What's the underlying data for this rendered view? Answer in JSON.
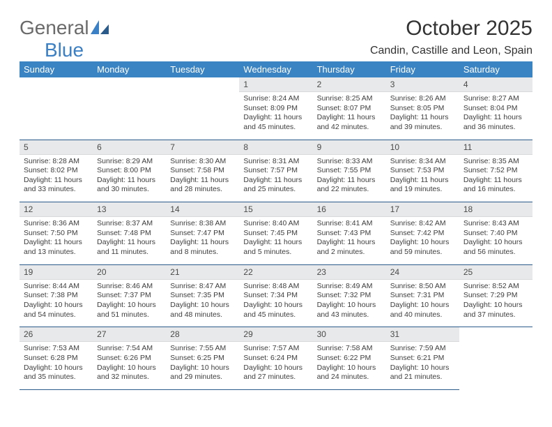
{
  "logo": {
    "general": "General",
    "blue": "Blue"
  },
  "title": "October 2025",
  "location": "Candin, Castille and Leon, Spain",
  "colors": {
    "header_bg": "#3b84c4",
    "header_text": "#ffffff",
    "daynum_bg": "#e8e9ea",
    "border": "#2a5a8a",
    "text": "#3d3d3d",
    "logo_general": "#6a6a6a",
    "logo_blue": "#3b7fc4"
  },
  "weekdays": [
    "Sunday",
    "Monday",
    "Tuesday",
    "Wednesday",
    "Thursday",
    "Friday",
    "Saturday"
  ],
  "weeks": [
    [
      {
        "day": "",
        "lines": [
          "",
          "",
          "",
          ""
        ]
      },
      {
        "day": "",
        "lines": [
          "",
          "",
          "",
          ""
        ]
      },
      {
        "day": "",
        "lines": [
          "",
          "",
          "",
          ""
        ]
      },
      {
        "day": "1",
        "lines": [
          "Sunrise: 8:24 AM",
          "Sunset: 8:09 PM",
          "Daylight: 11 hours",
          "and 45 minutes."
        ]
      },
      {
        "day": "2",
        "lines": [
          "Sunrise: 8:25 AM",
          "Sunset: 8:07 PM",
          "Daylight: 11 hours",
          "and 42 minutes."
        ]
      },
      {
        "day": "3",
        "lines": [
          "Sunrise: 8:26 AM",
          "Sunset: 8:05 PM",
          "Daylight: 11 hours",
          "and 39 minutes."
        ]
      },
      {
        "day": "4",
        "lines": [
          "Sunrise: 8:27 AM",
          "Sunset: 8:04 PM",
          "Daylight: 11 hours",
          "and 36 minutes."
        ]
      }
    ],
    [
      {
        "day": "5",
        "lines": [
          "Sunrise: 8:28 AM",
          "Sunset: 8:02 PM",
          "Daylight: 11 hours",
          "and 33 minutes."
        ]
      },
      {
        "day": "6",
        "lines": [
          "Sunrise: 8:29 AM",
          "Sunset: 8:00 PM",
          "Daylight: 11 hours",
          "and 30 minutes."
        ]
      },
      {
        "day": "7",
        "lines": [
          "Sunrise: 8:30 AM",
          "Sunset: 7:58 PM",
          "Daylight: 11 hours",
          "and 28 minutes."
        ]
      },
      {
        "day": "8",
        "lines": [
          "Sunrise: 8:31 AM",
          "Sunset: 7:57 PM",
          "Daylight: 11 hours",
          "and 25 minutes."
        ]
      },
      {
        "day": "9",
        "lines": [
          "Sunrise: 8:33 AM",
          "Sunset: 7:55 PM",
          "Daylight: 11 hours",
          "and 22 minutes."
        ]
      },
      {
        "day": "10",
        "lines": [
          "Sunrise: 8:34 AM",
          "Sunset: 7:53 PM",
          "Daylight: 11 hours",
          "and 19 minutes."
        ]
      },
      {
        "day": "11",
        "lines": [
          "Sunrise: 8:35 AM",
          "Sunset: 7:52 PM",
          "Daylight: 11 hours",
          "and 16 minutes."
        ]
      }
    ],
    [
      {
        "day": "12",
        "lines": [
          "Sunrise: 8:36 AM",
          "Sunset: 7:50 PM",
          "Daylight: 11 hours",
          "and 13 minutes."
        ]
      },
      {
        "day": "13",
        "lines": [
          "Sunrise: 8:37 AM",
          "Sunset: 7:48 PM",
          "Daylight: 11 hours",
          "and 11 minutes."
        ]
      },
      {
        "day": "14",
        "lines": [
          "Sunrise: 8:38 AM",
          "Sunset: 7:47 PM",
          "Daylight: 11 hours",
          "and 8 minutes."
        ]
      },
      {
        "day": "15",
        "lines": [
          "Sunrise: 8:40 AM",
          "Sunset: 7:45 PM",
          "Daylight: 11 hours",
          "and 5 minutes."
        ]
      },
      {
        "day": "16",
        "lines": [
          "Sunrise: 8:41 AM",
          "Sunset: 7:43 PM",
          "Daylight: 11 hours",
          "and 2 minutes."
        ]
      },
      {
        "day": "17",
        "lines": [
          "Sunrise: 8:42 AM",
          "Sunset: 7:42 PM",
          "Daylight: 10 hours",
          "and 59 minutes."
        ]
      },
      {
        "day": "18",
        "lines": [
          "Sunrise: 8:43 AM",
          "Sunset: 7:40 PM",
          "Daylight: 10 hours",
          "and 56 minutes."
        ]
      }
    ],
    [
      {
        "day": "19",
        "lines": [
          "Sunrise: 8:44 AM",
          "Sunset: 7:38 PM",
          "Daylight: 10 hours",
          "and 54 minutes."
        ]
      },
      {
        "day": "20",
        "lines": [
          "Sunrise: 8:46 AM",
          "Sunset: 7:37 PM",
          "Daylight: 10 hours",
          "and 51 minutes."
        ]
      },
      {
        "day": "21",
        "lines": [
          "Sunrise: 8:47 AM",
          "Sunset: 7:35 PM",
          "Daylight: 10 hours",
          "and 48 minutes."
        ]
      },
      {
        "day": "22",
        "lines": [
          "Sunrise: 8:48 AM",
          "Sunset: 7:34 PM",
          "Daylight: 10 hours",
          "and 45 minutes."
        ]
      },
      {
        "day": "23",
        "lines": [
          "Sunrise: 8:49 AM",
          "Sunset: 7:32 PM",
          "Daylight: 10 hours",
          "and 43 minutes."
        ]
      },
      {
        "day": "24",
        "lines": [
          "Sunrise: 8:50 AM",
          "Sunset: 7:31 PM",
          "Daylight: 10 hours",
          "and 40 minutes."
        ]
      },
      {
        "day": "25",
        "lines": [
          "Sunrise: 8:52 AM",
          "Sunset: 7:29 PM",
          "Daylight: 10 hours",
          "and 37 minutes."
        ]
      }
    ],
    [
      {
        "day": "26",
        "lines": [
          "Sunrise: 7:53 AM",
          "Sunset: 6:28 PM",
          "Daylight: 10 hours",
          "and 35 minutes."
        ]
      },
      {
        "day": "27",
        "lines": [
          "Sunrise: 7:54 AM",
          "Sunset: 6:26 PM",
          "Daylight: 10 hours",
          "and 32 minutes."
        ]
      },
      {
        "day": "28",
        "lines": [
          "Sunrise: 7:55 AM",
          "Sunset: 6:25 PM",
          "Daylight: 10 hours",
          "and 29 minutes."
        ]
      },
      {
        "day": "29",
        "lines": [
          "Sunrise: 7:57 AM",
          "Sunset: 6:24 PM",
          "Daylight: 10 hours",
          "and 27 minutes."
        ]
      },
      {
        "day": "30",
        "lines": [
          "Sunrise: 7:58 AM",
          "Sunset: 6:22 PM",
          "Daylight: 10 hours",
          "and 24 minutes."
        ]
      },
      {
        "day": "31",
        "lines": [
          "Sunrise: 7:59 AM",
          "Sunset: 6:21 PM",
          "Daylight: 10 hours",
          "and 21 minutes."
        ]
      },
      {
        "day": "",
        "lines": [
          "",
          "",
          "",
          ""
        ]
      }
    ]
  ]
}
